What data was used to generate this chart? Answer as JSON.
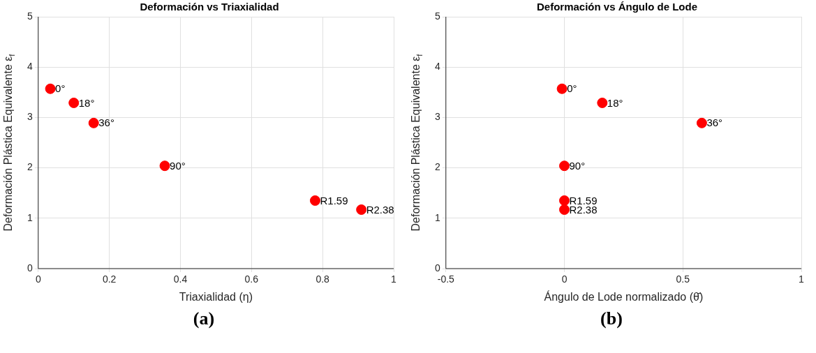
{
  "chart_data": [
    {
      "type": "scatter",
      "title": "Deformación vs Triaxialidad",
      "xlabel": "Triaxialidad (η)",
      "ylabel": "Deformación Plástica Equivalente ε$_{f}$",
      "marker": "circle",
      "grid": true,
      "legend": false,
      "series": [
        {
          "color": "#ff0000",
          "x": [
            0.034,
            0.1,
            0.156,
            0.356,
            0.779,
            0.909
          ],
          "values": [
            3.57,
            3.29,
            2.89,
            2.04,
            1.35,
            1.17
          ]
        }
      ],
      "xlim": [
        0,
        1
      ],
      "xticks": [
        0,
        0.2,
        0.4,
        0.6,
        0.8,
        1
      ],
      "ylim": [
        0,
        5
      ],
      "yticks": [
        0,
        1,
        2,
        3,
        4,
        5
      ],
      "annotations": [
        {
          "text": "0°",
          "x": 0.034,
          "y": 3.57
        },
        {
          "text": "18°",
          "x": 0.1,
          "y": 3.29
        },
        {
          "text": "36°",
          "x": 0.156,
          "y": 2.89
        },
        {
          "text": "90°",
          "x": 0.356,
          "y": 2.04
        },
        {
          "text": "R1.59",
          "x": 0.779,
          "y": 1.35
        },
        {
          "text": "R2.38",
          "x": 0.909,
          "y": 1.17
        },
        "(a)"
      ]
    },
    {
      "type": "scatter",
      "title": "Deformación vs Ángulo de Lode",
      "xlabel": "Ángulo de Lode normalizado (θ̄)",
      "ylabel": "Deformación Plástica Equivalente ε$_{f}$",
      "marker": "circle",
      "grid": true,
      "legend": false,
      "series": [
        {
          "color": "#ff0000",
          "x": [
            -0.01,
            0.16,
            0.58,
            0,
            0,
            0
          ],
          "values": [
            3.57,
            3.29,
            2.89,
            2.04,
            1.35,
            1.17
          ]
        }
      ],
      "xlim": [
        -0.5,
        1
      ],
      "xticks": [
        -0.5,
        0,
        0.5,
        1
      ],
      "ylim": [
        0,
        5
      ],
      "yticks": [
        0,
        1,
        2,
        3,
        4,
        5
      ],
      "annotations": [
        {
          "text": "0°",
          "x": -0.01,
          "y": 3.57
        },
        {
          "text": "18°",
          "x": 0.16,
          "y": 3.29
        },
        {
          "text": "36°",
          "x": 0.58,
          "y": 2.89
        },
        {
          "text": "90°",
          "x": 0,
          "y": 2.04
        },
        {
          "text": "R1.59",
          "x": 0,
          "y": 1.35
        },
        {
          "text": "R2.38",
          "x": 0,
          "y": 1.17
        },
        "(b)"
      ]
    }
  ]
}
